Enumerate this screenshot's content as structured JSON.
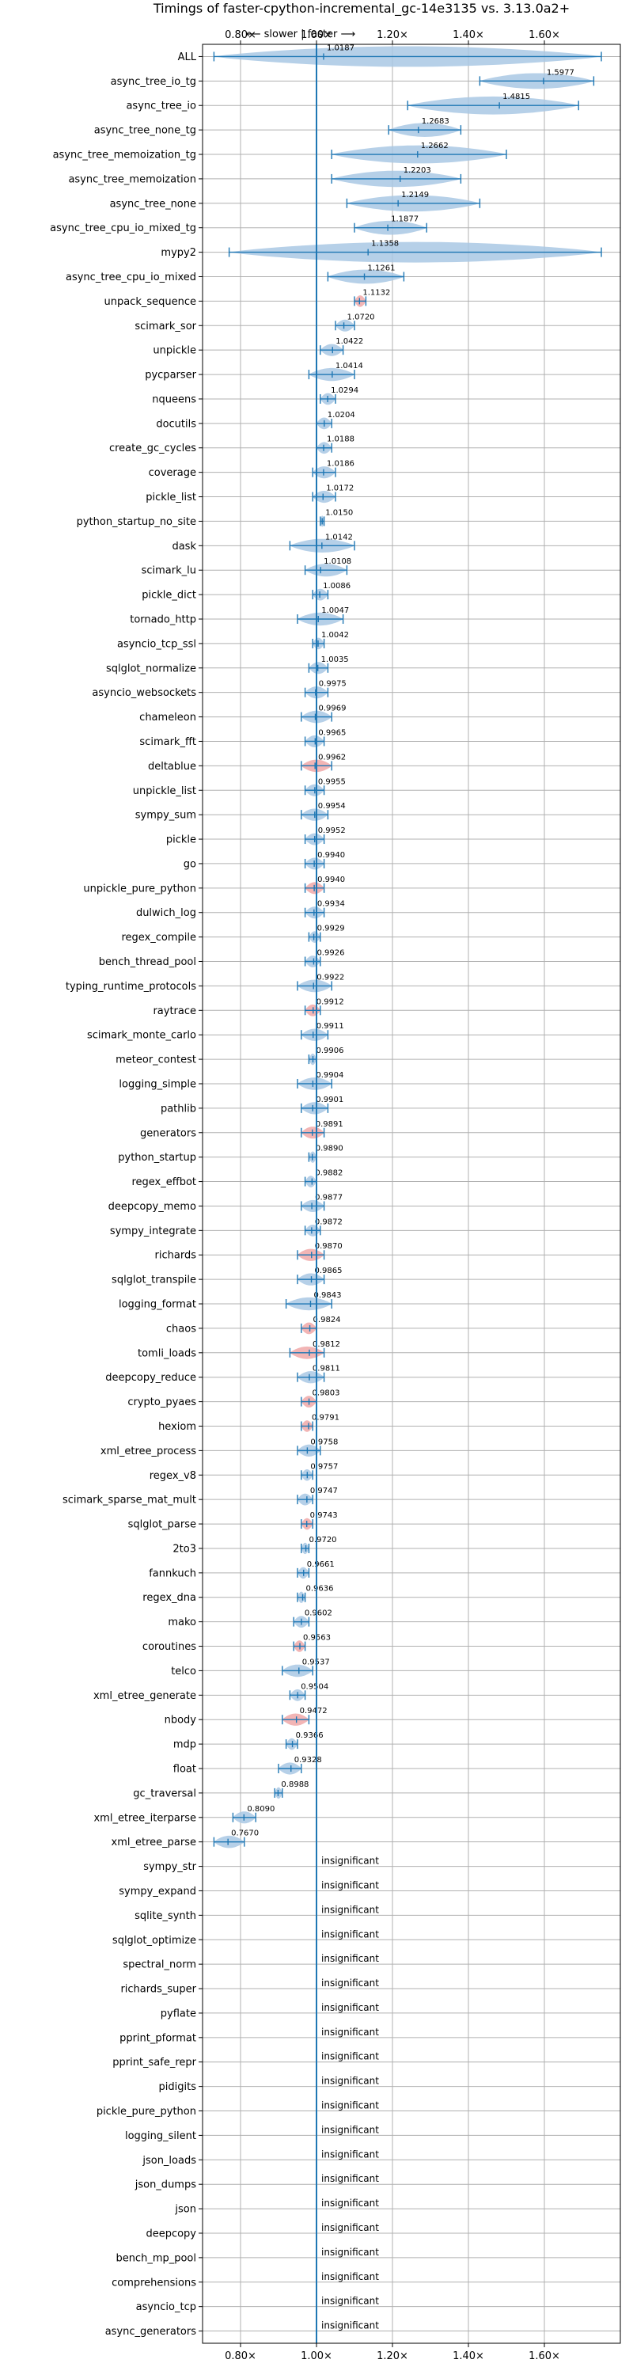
{
  "chart_data": {
    "type": "violin",
    "title": "Timings of faster-cpython-incremental_gc-14e3135 vs. 3.13.0a2+",
    "direction_note": "⟵ slower | faster ⟶",
    "xlim": [
      0.7,
      1.8
    ],
    "xticks": [
      0.8,
      1.0,
      1.2,
      1.4,
      1.6
    ],
    "xtick_labels": [
      "0.80×",
      "1.00×",
      "1.20×",
      "1.40×",
      "1.60×"
    ],
    "reference_line": 1.0,
    "grid": true,
    "insignificant_label": "insignificant",
    "benchmarks": [
      {
        "name": "ALL",
        "value": 1.0187,
        "lo": 0.73,
        "hi": 1.75,
        "highlight": false,
        "significant": true
      },
      {
        "name": "async_tree_io_tg",
        "value": 1.5977,
        "lo": 1.43,
        "hi": 1.73,
        "highlight": false,
        "significant": true
      },
      {
        "name": "async_tree_io",
        "value": 1.4815,
        "lo": 1.24,
        "hi": 1.69,
        "highlight": false,
        "significant": true
      },
      {
        "name": "async_tree_none_tg",
        "value": 1.2683,
        "lo": 1.19,
        "hi": 1.38,
        "highlight": false,
        "significant": true
      },
      {
        "name": "async_tree_memoization_tg",
        "value": 1.2662,
        "lo": 1.04,
        "hi": 1.5,
        "highlight": false,
        "significant": true
      },
      {
        "name": "async_tree_memoization",
        "value": 1.2203,
        "lo": 1.04,
        "hi": 1.38,
        "highlight": false,
        "significant": true
      },
      {
        "name": "async_tree_none",
        "value": 1.2149,
        "lo": 1.08,
        "hi": 1.43,
        "highlight": false,
        "significant": true
      },
      {
        "name": "async_tree_cpu_io_mixed_tg",
        "value": 1.1877,
        "lo": 1.1,
        "hi": 1.29,
        "highlight": false,
        "significant": true
      },
      {
        "name": "mypy2",
        "value": 1.1358,
        "lo": 0.77,
        "hi": 1.75,
        "highlight": false,
        "significant": true
      },
      {
        "name": "async_tree_cpu_io_mixed",
        "value": 1.1261,
        "lo": 1.03,
        "hi": 1.23,
        "highlight": false,
        "significant": true
      },
      {
        "name": "unpack_sequence",
        "value": 1.1132,
        "lo": 1.1,
        "hi": 1.13,
        "highlight": true,
        "significant": true
      },
      {
        "name": "scimark_sor",
        "value": 1.072,
        "lo": 1.05,
        "hi": 1.1,
        "highlight": false,
        "significant": true
      },
      {
        "name": "unpickle",
        "value": 1.0422,
        "lo": 1.01,
        "hi": 1.07,
        "highlight": false,
        "significant": true
      },
      {
        "name": "pycparser",
        "value": 1.0414,
        "lo": 0.98,
        "hi": 1.1,
        "highlight": false,
        "significant": true
      },
      {
        "name": "nqueens",
        "value": 1.0294,
        "lo": 1.01,
        "hi": 1.05,
        "highlight": false,
        "significant": true
      },
      {
        "name": "docutils",
        "value": 1.0204,
        "lo": 1.0,
        "hi": 1.04,
        "highlight": false,
        "significant": true
      },
      {
        "name": "create_gc_cycles",
        "value": 1.0188,
        "lo": 1.0,
        "hi": 1.04,
        "highlight": false,
        "significant": true
      },
      {
        "name": "coverage",
        "value": 1.0186,
        "lo": 0.99,
        "hi": 1.05,
        "highlight": false,
        "significant": true
      },
      {
        "name": "pickle_list",
        "value": 1.0172,
        "lo": 0.99,
        "hi": 1.05,
        "highlight": false,
        "significant": true
      },
      {
        "name": "python_startup_no_site",
        "value": 1.015,
        "lo": 1.01,
        "hi": 1.02,
        "highlight": false,
        "significant": true
      },
      {
        "name": "dask",
        "value": 1.0142,
        "lo": 0.93,
        "hi": 1.1,
        "highlight": false,
        "significant": true
      },
      {
        "name": "scimark_lu",
        "value": 1.0108,
        "lo": 0.97,
        "hi": 1.08,
        "highlight": false,
        "significant": true
      },
      {
        "name": "pickle_dict",
        "value": 1.0086,
        "lo": 0.99,
        "hi": 1.03,
        "highlight": false,
        "significant": true
      },
      {
        "name": "tornado_http",
        "value": 1.0047,
        "lo": 0.95,
        "hi": 1.07,
        "highlight": false,
        "significant": true
      },
      {
        "name": "asyncio_tcp_ssl",
        "value": 1.0042,
        "lo": 0.99,
        "hi": 1.02,
        "highlight": false,
        "significant": true
      },
      {
        "name": "sqlglot_normalize",
        "value": 1.0035,
        "lo": 0.98,
        "hi": 1.03,
        "highlight": false,
        "significant": true
      },
      {
        "name": "asyncio_websockets",
        "value": 0.9975,
        "lo": 0.97,
        "hi": 1.03,
        "highlight": false,
        "significant": true
      },
      {
        "name": "chameleon",
        "value": 0.9969,
        "lo": 0.96,
        "hi": 1.04,
        "highlight": false,
        "significant": true
      },
      {
        "name": "scimark_fft",
        "value": 0.9965,
        "lo": 0.97,
        "hi": 1.02,
        "highlight": false,
        "significant": true
      },
      {
        "name": "deltablue",
        "value": 0.9962,
        "lo": 0.96,
        "hi": 1.04,
        "highlight": true,
        "significant": true
      },
      {
        "name": "unpickle_list",
        "value": 0.9955,
        "lo": 0.97,
        "hi": 1.02,
        "highlight": false,
        "significant": true
      },
      {
        "name": "sympy_sum",
        "value": 0.9954,
        "lo": 0.96,
        "hi": 1.03,
        "highlight": false,
        "significant": true
      },
      {
        "name": "pickle",
        "value": 0.9952,
        "lo": 0.97,
        "hi": 1.02,
        "highlight": false,
        "significant": true
      },
      {
        "name": "go",
        "value": 0.994,
        "lo": 0.97,
        "hi": 1.02,
        "highlight": false,
        "significant": true
      },
      {
        "name": "unpickle_pure_python",
        "value": 0.994,
        "lo": 0.97,
        "hi": 1.02,
        "highlight": true,
        "significant": true
      },
      {
        "name": "dulwich_log",
        "value": 0.9934,
        "lo": 0.97,
        "hi": 1.02,
        "highlight": false,
        "significant": true
      },
      {
        "name": "regex_compile",
        "value": 0.9929,
        "lo": 0.98,
        "hi": 1.01,
        "highlight": false,
        "significant": true
      },
      {
        "name": "bench_thread_pool",
        "value": 0.9926,
        "lo": 0.97,
        "hi": 1.01,
        "highlight": false,
        "significant": true
      },
      {
        "name": "typing_runtime_protocols",
        "value": 0.9922,
        "lo": 0.95,
        "hi": 1.04,
        "highlight": false,
        "significant": true
      },
      {
        "name": "raytrace",
        "value": 0.9912,
        "lo": 0.97,
        "hi": 1.01,
        "highlight": true,
        "significant": true
      },
      {
        "name": "scimark_monte_carlo",
        "value": 0.9911,
        "lo": 0.96,
        "hi": 1.03,
        "highlight": false,
        "significant": true
      },
      {
        "name": "meteor_contest",
        "value": 0.9906,
        "lo": 0.98,
        "hi": 1.0,
        "highlight": false,
        "significant": true
      },
      {
        "name": "logging_simple",
        "value": 0.9904,
        "lo": 0.95,
        "hi": 1.04,
        "highlight": false,
        "significant": true
      },
      {
        "name": "pathlib",
        "value": 0.9901,
        "lo": 0.96,
        "hi": 1.03,
        "highlight": false,
        "significant": true
      },
      {
        "name": "generators",
        "value": 0.9891,
        "lo": 0.96,
        "hi": 1.02,
        "highlight": true,
        "significant": true
      },
      {
        "name": "python_startup",
        "value": 0.989,
        "lo": 0.98,
        "hi": 1.0,
        "highlight": false,
        "significant": true
      },
      {
        "name": "regex_effbot",
        "value": 0.9882,
        "lo": 0.97,
        "hi": 1.0,
        "highlight": false,
        "significant": true
      },
      {
        "name": "deepcopy_memo",
        "value": 0.9877,
        "lo": 0.96,
        "hi": 1.02,
        "highlight": false,
        "significant": true
      },
      {
        "name": "sympy_integrate",
        "value": 0.9872,
        "lo": 0.97,
        "hi": 1.01,
        "highlight": false,
        "significant": true
      },
      {
        "name": "richards",
        "value": 0.987,
        "lo": 0.95,
        "hi": 1.02,
        "highlight": true,
        "significant": true
      },
      {
        "name": "sqlglot_transpile",
        "value": 0.9865,
        "lo": 0.95,
        "hi": 1.02,
        "highlight": false,
        "significant": true
      },
      {
        "name": "logging_format",
        "value": 0.9843,
        "lo": 0.92,
        "hi": 1.04,
        "highlight": false,
        "significant": true
      },
      {
        "name": "chaos",
        "value": 0.9824,
        "lo": 0.96,
        "hi": 1.0,
        "highlight": true,
        "significant": true
      },
      {
        "name": "tomli_loads",
        "value": 0.9812,
        "lo": 0.93,
        "hi": 1.02,
        "highlight": true,
        "significant": true
      },
      {
        "name": "deepcopy_reduce",
        "value": 0.9811,
        "lo": 0.95,
        "hi": 1.02,
        "highlight": false,
        "significant": true
      },
      {
        "name": "crypto_pyaes",
        "value": 0.9803,
        "lo": 0.96,
        "hi": 1.0,
        "highlight": true,
        "significant": true
      },
      {
        "name": "hexiom",
        "value": 0.9791,
        "lo": 0.96,
        "hi": 0.99,
        "highlight": true,
        "significant": true
      },
      {
        "name": "xml_etree_process",
        "value": 0.9758,
        "lo": 0.95,
        "hi": 1.01,
        "highlight": false,
        "significant": true
      },
      {
        "name": "regex_v8",
        "value": 0.9757,
        "lo": 0.96,
        "hi": 0.99,
        "highlight": false,
        "significant": true
      },
      {
        "name": "scimark_sparse_mat_mult",
        "value": 0.9747,
        "lo": 0.95,
        "hi": 0.99,
        "highlight": false,
        "significant": true
      },
      {
        "name": "sqlglot_parse",
        "value": 0.9743,
        "lo": 0.96,
        "hi": 0.99,
        "highlight": true,
        "significant": true
      },
      {
        "name": "2to3",
        "value": 0.972,
        "lo": 0.96,
        "hi": 0.98,
        "highlight": false,
        "significant": true
      },
      {
        "name": "fannkuch",
        "value": 0.9661,
        "lo": 0.95,
        "hi": 0.98,
        "highlight": false,
        "significant": true
      },
      {
        "name": "regex_dna",
        "value": 0.9636,
        "lo": 0.95,
        "hi": 0.97,
        "highlight": false,
        "significant": true
      },
      {
        "name": "mako",
        "value": 0.9602,
        "lo": 0.94,
        "hi": 0.98,
        "highlight": false,
        "significant": true
      },
      {
        "name": "coroutines",
        "value": 0.9563,
        "lo": 0.94,
        "hi": 0.97,
        "highlight": true,
        "significant": true
      },
      {
        "name": "telco",
        "value": 0.9537,
        "lo": 0.91,
        "hi": 0.99,
        "highlight": false,
        "significant": true
      },
      {
        "name": "xml_etree_generate",
        "value": 0.9504,
        "lo": 0.93,
        "hi": 0.97,
        "highlight": false,
        "significant": true
      },
      {
        "name": "nbody",
        "value": 0.9472,
        "lo": 0.91,
        "hi": 0.98,
        "highlight": true,
        "significant": true
      },
      {
        "name": "mdp",
        "value": 0.9366,
        "lo": 0.92,
        "hi": 0.95,
        "highlight": false,
        "significant": true
      },
      {
        "name": "float",
        "value": 0.9328,
        "lo": 0.9,
        "hi": 0.96,
        "highlight": false,
        "significant": true
      },
      {
        "name": "gc_traversal",
        "value": 0.8988,
        "lo": 0.89,
        "hi": 0.91,
        "highlight": false,
        "significant": true
      },
      {
        "name": "xml_etree_iterparse",
        "value": 0.809,
        "lo": 0.78,
        "hi": 0.84,
        "highlight": false,
        "significant": true
      },
      {
        "name": "xml_etree_parse",
        "value": 0.767,
        "lo": 0.73,
        "hi": 0.81,
        "highlight": false,
        "significant": true
      },
      {
        "name": "sympy_str",
        "significant": false
      },
      {
        "name": "sympy_expand",
        "significant": false
      },
      {
        "name": "sqlite_synth",
        "significant": false
      },
      {
        "name": "sqlglot_optimize",
        "significant": false
      },
      {
        "name": "spectral_norm",
        "significant": false
      },
      {
        "name": "richards_super",
        "significant": false
      },
      {
        "name": "pyflate",
        "significant": false
      },
      {
        "name": "pprint_pformat",
        "significant": false
      },
      {
        "name": "pprint_safe_repr",
        "significant": false
      },
      {
        "name": "pidigits",
        "significant": false
      },
      {
        "name": "pickle_pure_python",
        "significant": false
      },
      {
        "name": "logging_silent",
        "significant": false
      },
      {
        "name": "json_loads",
        "significant": false
      },
      {
        "name": "json_dumps",
        "significant": false
      },
      {
        "name": "json",
        "significant": false
      },
      {
        "name": "deepcopy",
        "significant": false
      },
      {
        "name": "bench_mp_pool",
        "significant": false
      },
      {
        "name": "comprehensions",
        "significant": false
      },
      {
        "name": "asyncio_tcp",
        "significant": false
      },
      {
        "name": "async_generators",
        "significant": false
      }
    ]
  },
  "colors": {
    "violin": "#a9c8e4",
    "highlight": "#f0a8a8",
    "line": "#1f77b4",
    "grid": "#b0b0b0",
    "text": "#000000"
  }
}
